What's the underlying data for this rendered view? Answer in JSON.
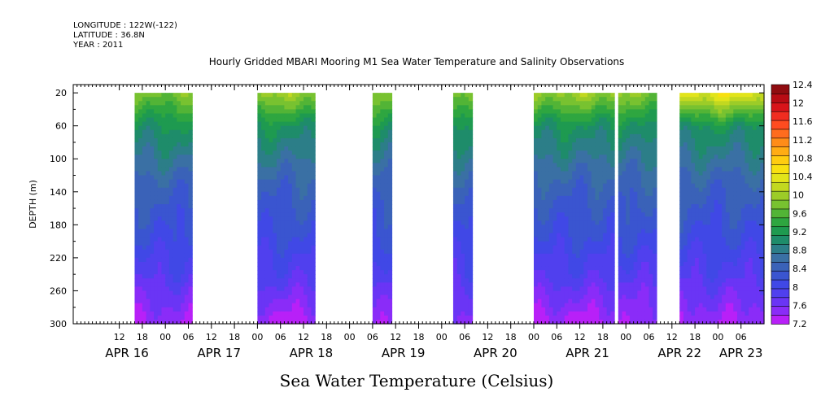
{
  "header": {
    "longitude": "LONGITUDE : 122W(-122)",
    "latitude": "LATITUDE : 36.8N",
    "year": "YEAR : 2011"
  },
  "chart_data": {
    "type": "heatmap",
    "title": "Hourly Gridded MBARI Mooring M1 Sea Water Temperature and Salinity Observations",
    "variable_title": "Sea Water Temperature (Celsius)",
    "ylabel": "DEPTH (m)",
    "x_axis": {
      "range_hours": [
        0,
        180
      ],
      "hour_ticks": [
        {
          "h": 12,
          "label": "12"
        },
        {
          "h": 18,
          "label": "18"
        },
        {
          "h": 24,
          "label": "00"
        },
        {
          "h": 30,
          "label": "06"
        },
        {
          "h": 36,
          "label": "12"
        },
        {
          "h": 42,
          "label": "18"
        },
        {
          "h": 48,
          "label": "00"
        },
        {
          "h": 54,
          "label": "06"
        },
        {
          "h": 60,
          "label": "12"
        },
        {
          "h": 66,
          "label": "18"
        },
        {
          "h": 72,
          "label": "00"
        },
        {
          "h": 78,
          "label": "06"
        },
        {
          "h": 84,
          "label": "12"
        },
        {
          "h": 90,
          "label": "18"
        },
        {
          "h": 96,
          "label": "00"
        },
        {
          "h": 102,
          "label": "06"
        },
        {
          "h": 108,
          "label": "12"
        },
        {
          "h": 114,
          "label": "18"
        },
        {
          "h": 120,
          "label": "00"
        },
        {
          "h": 126,
          "label": "06"
        },
        {
          "h": 132,
          "label": "12"
        },
        {
          "h": 138,
          "label": "18"
        },
        {
          "h": 144,
          "label": "00"
        },
        {
          "h": 150,
          "label": "06"
        },
        {
          "h": 156,
          "label": "12"
        },
        {
          "h": 162,
          "label": "18"
        },
        {
          "h": 168,
          "label": "00"
        },
        {
          "h": 174,
          "label": "06"
        }
      ],
      "date_labels": [
        {
          "h": 14,
          "label": "APR 16"
        },
        {
          "h": 38,
          "label": "APR 17"
        },
        {
          "h": 62,
          "label": "APR 18"
        },
        {
          "h": 86,
          "label": "APR 19"
        },
        {
          "h": 110,
          "label": "APR 20"
        },
        {
          "h": 134,
          "label": "APR 21"
        },
        {
          "h": 158,
          "label": "APR 22"
        },
        {
          "h": 174,
          "label": "APR 23"
        }
      ]
    },
    "y_axis": {
      "range": [
        300,
        10
      ],
      "ticks": [
        20,
        60,
        100,
        140,
        180,
        220,
        260,
        300
      ],
      "inverted": true
    },
    "colorbar": {
      "levels": [
        7.2,
        7.4,
        7.6,
        7.8,
        8.0,
        8.2,
        8.4,
        8.6,
        8.8,
        9.0,
        9.2,
        9.4,
        9.6,
        9.8,
        10.0,
        10.2,
        10.4,
        10.6,
        10.8,
        11.0,
        11.2,
        11.4,
        11.6,
        11.8,
        12.0,
        12.2,
        12.4
      ],
      "labels": [
        "7.2",
        "7.6",
        "8",
        "8.4",
        "8.8",
        "9.2",
        "9.6",
        "10",
        "10.4",
        "10.8",
        "11.2",
        "11.6",
        "12",
        "12.4"
      ],
      "colors": [
        "#b820f8",
        "#8a2cf8",
        "#6a35f5",
        "#5040ee",
        "#4048e6",
        "#3a55d0",
        "#3a62b8",
        "#3a70a4",
        "#2c7e88",
        "#1e8c6a",
        "#1e9a50",
        "#2ea640",
        "#52b436",
        "#78c230",
        "#9ccc28",
        "#c2d820",
        "#e2e41a",
        "#f8e010",
        "#ffcc10",
        "#ffac14",
        "#ff8c18",
        "#ff6c1e",
        "#ff4c20",
        "#f02c20",
        "#d8141a",
        "#b80c14",
        "#900c10"
      ]
    },
    "depth_profile_c": [
      {
        "depth": 20,
        "temp": 10.0
      },
      {
        "depth": 40,
        "temp": 9.6
      },
      {
        "depth": 60,
        "temp": 9.2
      },
      {
        "depth": 80,
        "temp": 9.0
      },
      {
        "depth": 100,
        "temp": 8.8
      },
      {
        "depth": 120,
        "temp": 8.6
      },
      {
        "depth": 140,
        "temp": 8.45
      },
      {
        "depth": 160,
        "temp": 8.35
      },
      {
        "depth": 180,
        "temp": 8.25
      },
      {
        "depth": 200,
        "temp": 8.15
      },
      {
        "depth": 220,
        "temp": 8.0
      },
      {
        "depth": 240,
        "temp": 7.9
      },
      {
        "depth": 260,
        "temp": 7.7
      },
      {
        "depth": 280,
        "temp": 7.5
      },
      {
        "depth": 300,
        "temp": 7.3
      }
    ],
    "data_segments": [
      {
        "start_h": 16,
        "end_h": 31,
        "surface_temp": 9.9,
        "bottom_temp": 7.4
      },
      {
        "start_h": 48,
        "end_h": 63,
        "surface_temp": 10.1,
        "bottom_temp": 7.3
      },
      {
        "start_h": 78,
        "end_h": 83,
        "surface_temp": 9.9,
        "bottom_temp": 7.5
      },
      {
        "start_h": 99,
        "end_h": 104,
        "surface_temp": 10.0,
        "bottom_temp": 7.5
      },
      {
        "start_h": 120,
        "end_h": 141,
        "surface_temp": 10.1,
        "bottom_temp": 7.3
      },
      {
        "start_h": 142,
        "end_h": 152,
        "surface_temp": 10.0,
        "bottom_temp": 7.5
      },
      {
        "start_h": 158,
        "end_h": 180,
        "surface_temp": 10.6,
        "bottom_temp": 7.4
      }
    ]
  }
}
